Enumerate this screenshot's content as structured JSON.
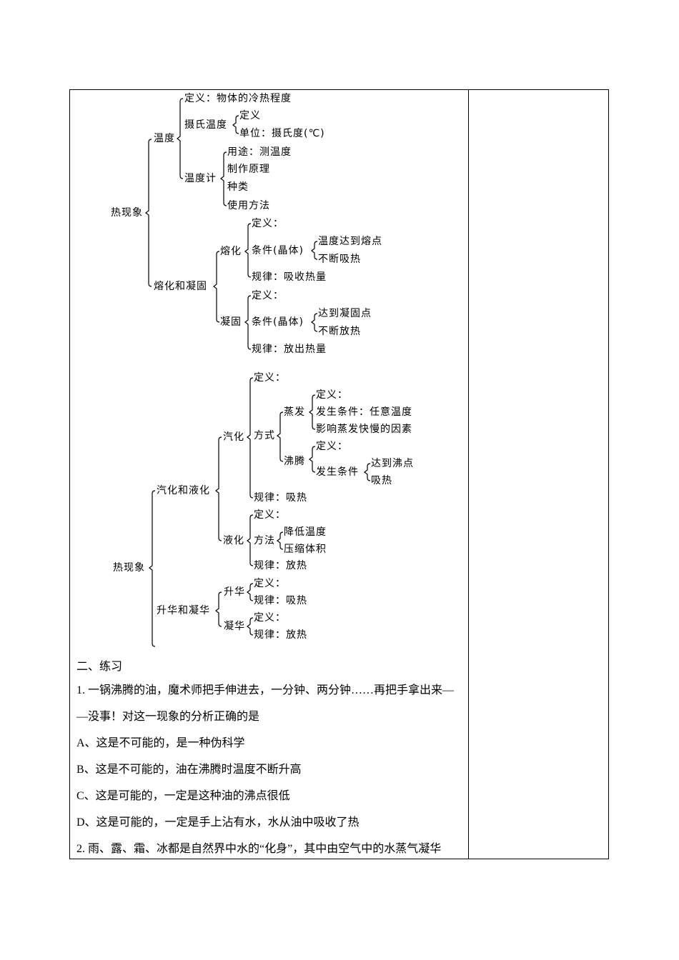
{
  "diagram1": {
    "labels": [
      "热现象",
      "温度",
      "熔化和凝固",
      "定义：物体的冷热程度",
      "摄氏温度",
      "定义",
      "单位：摄氏度(℃)",
      "温度计",
      "用途：测温度",
      "制作原理",
      "种类",
      "使用方法",
      "熔化",
      "定义：",
      "条件(晶体)",
      "温度达到熔点",
      "不断吸热",
      "规律：吸收热量",
      "凝固",
      "定义：",
      "条件(晶体)",
      "达到凝固点",
      "不断放热",
      "规律：放出热量"
    ]
  },
  "diagram2": {
    "labels": [
      "热现象",
      "汽化和液化",
      "升华和凝华",
      "汽化",
      "液化",
      "升华",
      "凝华",
      "定义：",
      "方式",
      "规律：吸热",
      "蒸发",
      "沸腾",
      "定义：",
      "发生条件：任意温度",
      "影响蒸发快慢的因素",
      "定义：",
      "发生条件",
      "达到沸点",
      "吸热",
      "定义：",
      "方法",
      "降低温度",
      "压缩体积",
      "规律：放热",
      "定义：",
      "规律：吸热",
      "定义：",
      "规律：放热"
    ]
  },
  "exercise": {
    "heading": "二、练习",
    "q1_line1": "1. 一锅沸腾的油，魔术师把手伸进去，一分钟、两分钟……再把手拿出来—",
    "q1_line2": "—没事！对这一现象的分析正确的是",
    "option_a": "A、这是不可能的，是一种伪科学",
    "option_b": "B、这是不可能的，油在沸腾时温度不断升高",
    "option_c": "C、这是可能的，一定是这种油的沸点很低",
    "option_d": "D、这是可能的，一定是手上沾有水，水从油中吸收了热",
    "q2_line1": "2. 雨、露、霜、冰都是自然界中水的“化身”，其中由空气中的水蒸气凝华"
  }
}
